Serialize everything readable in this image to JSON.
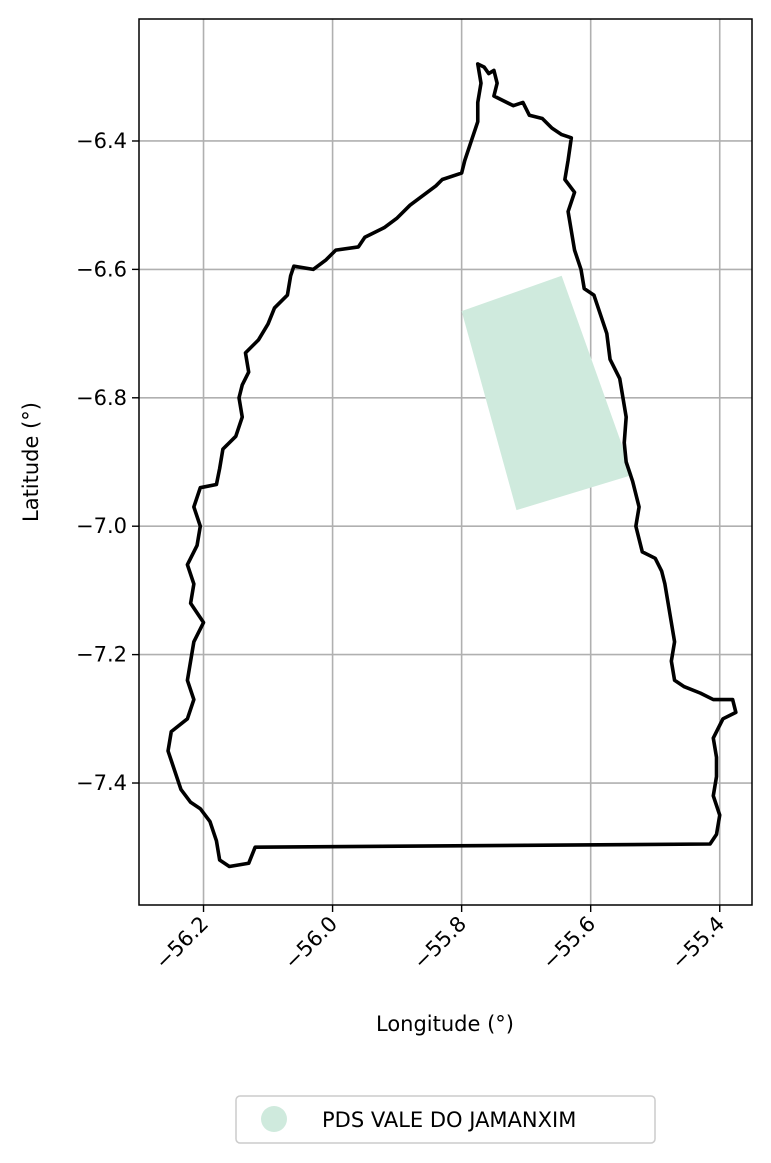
{
  "chart_data": {
    "type": "map",
    "xlabel": "Longitude (°)",
    "ylabel": "Latitude (°)",
    "xlim": [
      -56.3,
      -55.35
    ],
    "ylim": [
      -7.59,
      -6.21
    ],
    "grid": true,
    "x_ticks": [
      -56.2,
      -56.0,
      -55.8,
      -55.6,
      -55.4
    ],
    "x_tick_labels": [
      "−56.2",
      "−56.0",
      "−55.8",
      "−55.6",
      "−55.4"
    ],
    "y_ticks": [
      -6.4,
      -6.6,
      -6.8,
      -7.0,
      -7.2,
      -7.4
    ],
    "y_tick_labels": [
      "−6.4",
      "−6.6",
      "−6.8",
      "−7.0",
      "−7.2",
      "−7.4"
    ],
    "boundary_color": "#000000",
    "boundary": [
      [
        -55.775,
        -6.28
      ],
      [
        -55.765,
        -6.285
      ],
      [
        -55.758,
        -6.295
      ],
      [
        -55.75,
        -6.29
      ],
      [
        -55.745,
        -6.31
      ],
      [
        -55.75,
        -6.33
      ],
      [
        -55.72,
        -6.345
      ],
      [
        -55.705,
        -6.34
      ],
      [
        -55.695,
        -6.36
      ],
      [
        -55.675,
        -6.365
      ],
      [
        -55.66,
        -6.38
      ],
      [
        -55.645,
        -6.39
      ],
      [
        -55.63,
        -6.395
      ],
      [
        -55.635,
        -6.43
      ],
      [
        -55.64,
        -6.46
      ],
      [
        -55.625,
        -6.48
      ],
      [
        -55.635,
        -6.51
      ],
      [
        -55.63,
        -6.54
      ],
      [
        -55.625,
        -6.57
      ],
      [
        -55.615,
        -6.6
      ],
      [
        -55.61,
        -6.63
      ],
      [
        -55.595,
        -6.64
      ],
      [
        -55.585,
        -6.67
      ],
      [
        -55.575,
        -6.7
      ],
      [
        -55.57,
        -6.74
      ],
      [
        -55.555,
        -6.77
      ],
      [
        -55.55,
        -6.8
      ],
      [
        -55.545,
        -6.83
      ],
      [
        -55.548,
        -6.87
      ],
      [
        -55.545,
        -6.9
      ],
      [
        -55.535,
        -6.93
      ],
      [
        -55.525,
        -6.97
      ],
      [
        -55.53,
        -7.0
      ],
      [
        -55.52,
        -7.04
      ],
      [
        -55.5,
        -7.05
      ],
      [
        -55.49,
        -7.07
      ],
      [
        -55.485,
        -7.09
      ],
      [
        -55.48,
        -7.12
      ],
      [
        -55.475,
        -7.15
      ],
      [
        -55.47,
        -7.18
      ],
      [
        -55.475,
        -7.21
      ],
      [
        -55.47,
        -7.24
      ],
      [
        -55.455,
        -7.25
      ],
      [
        -55.43,
        -7.26
      ],
      [
        -55.41,
        -7.27
      ],
      [
        -55.38,
        -7.27
      ],
      [
        -55.375,
        -7.29
      ],
      [
        -55.395,
        -7.3
      ],
      [
        -55.41,
        -7.33
      ],
      [
        -55.405,
        -7.36
      ],
      [
        -55.405,
        -7.39
      ],
      [
        -55.41,
        -7.42
      ],
      [
        -55.4,
        -7.45
      ],
      [
        -55.405,
        -7.48
      ],
      [
        -55.415,
        -7.495
      ],
      [
        -56.12,
        -7.5
      ],
      [
        -56.13,
        -7.525
      ],
      [
        -56.16,
        -7.53
      ],
      [
        -56.175,
        -7.52
      ],
      [
        -56.18,
        -7.49
      ],
      [
        -56.19,
        -7.46
      ],
      [
        -56.205,
        -7.44
      ],
      [
        -56.22,
        -7.43
      ],
      [
        -56.235,
        -7.41
      ],
      [
        -56.245,
        -7.38
      ],
      [
        -56.255,
        -7.35
      ],
      [
        -56.25,
        -7.32
      ],
      [
        -56.225,
        -7.3
      ],
      [
        -56.215,
        -7.27
      ],
      [
        -56.225,
        -7.24
      ],
      [
        -56.22,
        -7.21
      ],
      [
        -56.215,
        -7.18
      ],
      [
        -56.2,
        -7.15
      ],
      [
        -56.22,
        -7.12
      ],
      [
        -56.215,
        -7.09
      ],
      [
        -56.225,
        -7.06
      ],
      [
        -56.21,
        -7.03
      ],
      [
        -56.205,
        -7.0
      ],
      [
        -56.215,
        -6.97
      ],
      [
        -56.205,
        -6.94
      ],
      [
        -56.18,
        -6.935
      ],
      [
        -56.175,
        -6.91
      ],
      [
        -56.17,
        -6.88
      ],
      [
        -56.15,
        -6.86
      ],
      [
        -56.14,
        -6.83
      ],
      [
        -56.145,
        -6.8
      ],
      [
        -56.14,
        -6.78
      ],
      [
        -56.13,
        -6.76
      ],
      [
        -56.135,
        -6.73
      ],
      [
        -56.115,
        -6.71
      ],
      [
        -56.1,
        -6.685
      ],
      [
        -56.09,
        -6.66
      ],
      [
        -56.07,
        -6.64
      ],
      [
        -56.065,
        -6.61
      ],
      [
        -56.06,
        -6.595
      ],
      [
        -56.03,
        -6.6
      ],
      [
        -56.01,
        -6.585
      ],
      [
        -55.995,
        -6.57
      ],
      [
        -55.96,
        -6.565
      ],
      [
        -55.95,
        -6.55
      ],
      [
        -55.92,
        -6.535
      ],
      [
        -55.9,
        -6.52
      ],
      [
        -55.88,
        -6.5
      ],
      [
        -55.86,
        -6.485
      ],
      [
        -55.84,
        -6.47
      ],
      [
        -55.83,
        -6.46
      ],
      [
        -55.8,
        -6.45
      ],
      [
        -55.795,
        -6.43
      ],
      [
        -55.785,
        -6.4
      ],
      [
        -55.775,
        -6.37
      ],
      [
        -55.775,
        -6.34
      ],
      [
        -55.77,
        -6.31
      ],
      [
        -55.775,
        -6.28
      ]
    ],
    "areas": [
      {
        "name": "PDS VALE DO JAMANXIM",
        "color": "#cfeadd",
        "polygon": [
          [
            -55.8,
            -6.665
          ],
          [
            -55.645,
            -6.61
          ],
          [
            -55.535,
            -6.92
          ],
          [
            -55.715,
            -6.975
          ]
        ]
      }
    ],
    "legend": {
      "placement": "bottom-center",
      "entries": [
        {
          "label": "PDS VALE DO JAMANXIM",
          "color": "#cfeadd",
          "marker": "circle"
        }
      ]
    }
  }
}
